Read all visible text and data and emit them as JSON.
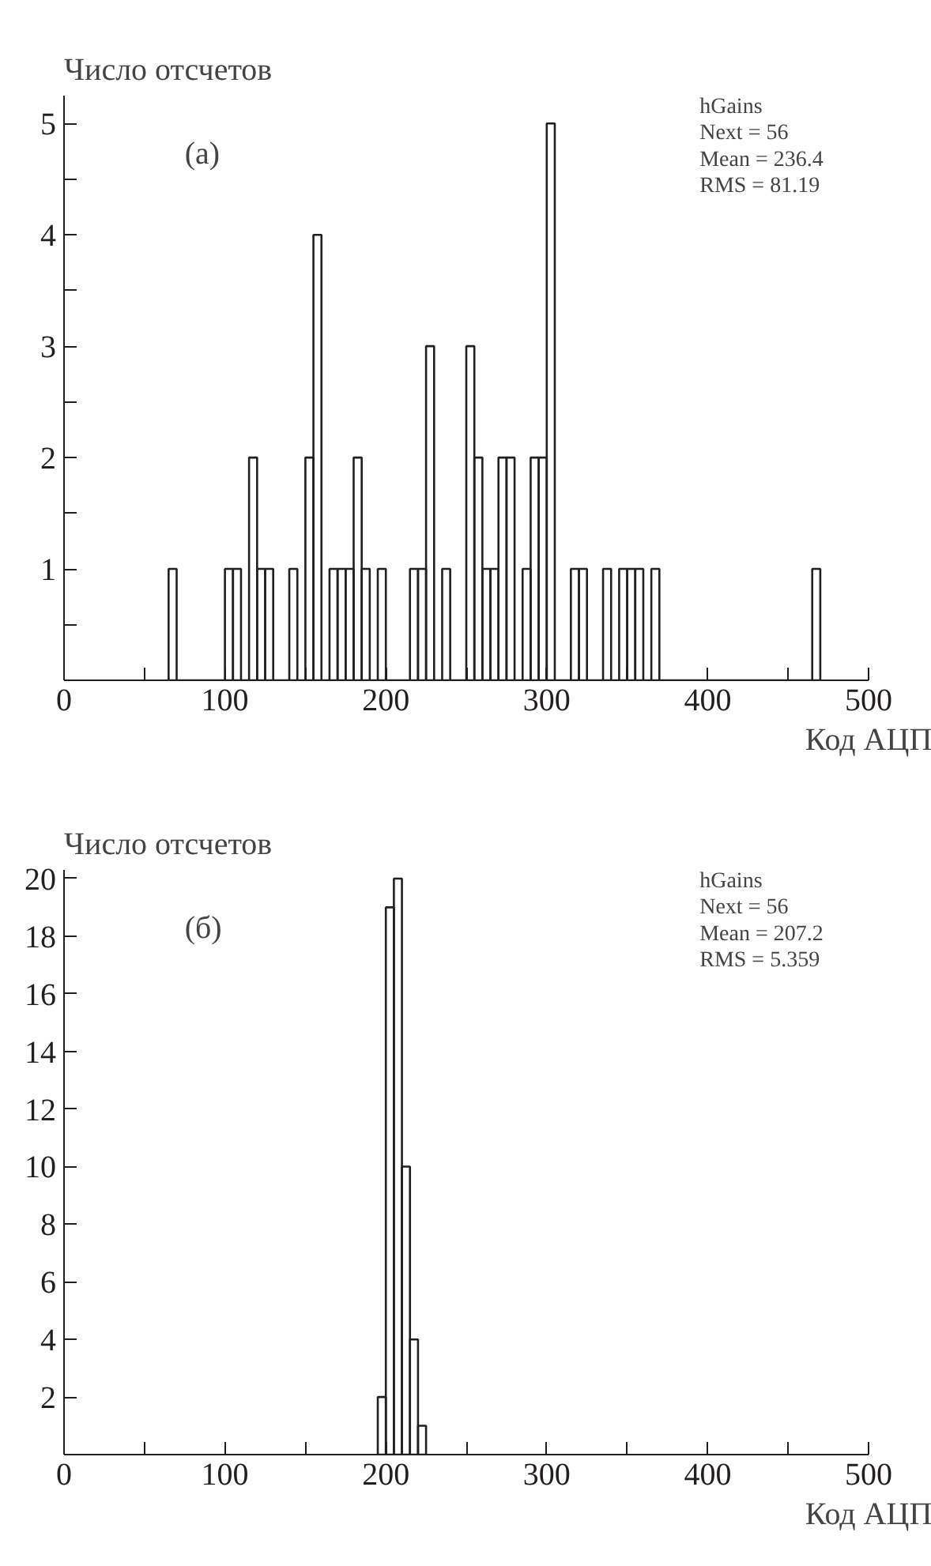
{
  "chart_data": [
    {
      "type": "histogram",
      "ylabel": "Число отсчетов",
      "xlabel": "Код АЦП",
      "annotations": [
        "(a)",
        "hGains",
        "Next = 56",
        "Mean = 236.4",
        "RMS = 81.19"
      ],
      "bins": [
        65,
        70,
        75,
        80,
        85,
        90,
        95,
        100,
        105,
        110,
        115,
        120,
        125,
        130,
        135,
        140,
        145,
        150,
        155,
        160,
        165,
        170,
        175,
        180,
        185,
        190,
        195,
        200,
        205,
        210,
        215,
        220,
        225,
        230,
        235,
        240,
        245,
        250,
        255,
        260,
        265,
        270,
        275,
        280,
        285,
        290,
        295,
        300,
        305,
        310,
        315,
        320,
        325,
        330,
        335,
        340,
        345,
        350,
        355,
        360,
        365,
        370,
        375,
        380,
        385,
        390,
        395,
        400,
        405,
        410,
        415,
        420,
        425,
        430,
        435,
        440,
        445,
        450,
        455,
        460,
        465,
        470
      ],
      "values": [
        1,
        0,
        0,
        0,
        0,
        0,
        0,
        1,
        1,
        0,
        2,
        1,
        1,
        0,
        0,
        1,
        0,
        2,
        4,
        0,
        1,
        1,
        1,
        2,
        1,
        0,
        1,
        0,
        0,
        0,
        1,
        1,
        3,
        0,
        1,
        0,
        0,
        3,
        2,
        1,
        1,
        2,
        2,
        0,
        1,
        2,
        2,
        5,
        0,
        0,
        1,
        1,
        0,
        0,
        1,
        0,
        1,
        1,
        1,
        0,
        1,
        0,
        0,
        0,
        0,
        0,
        0,
        0,
        0,
        0,
        0,
        0,
        0,
        0,
        0,
        0,
        0,
        0,
        0,
        0,
        1
      ],
      "color": "#231f20",
      "xlim": [
        0,
        500
      ],
      "ylim": [
        0,
        5.25
      ],
      "xticks": [
        0,
        {
          "value": 50,
          "label": null
        },
        100,
        {
          "value": 150,
          "label": null
        },
        200,
        {
          "value": 250,
          "label": null
        },
        300,
        {
          "value": 350,
          "label": null
        },
        400,
        {
          "value": 450,
          "label": null
        },
        500
      ],
      "yticks": [
        {
          "value": 0.5,
          "label": null
        },
        1,
        {
          "value": 1.5,
          "label": null
        },
        2,
        {
          "value": 2.5,
          "label": null
        },
        3,
        {
          "value": 3.5,
          "label": null
        },
        4,
        {
          "value": 4.5,
          "label": null
        },
        5
      ],
      "grid": false
    },
    {
      "type": "histogram",
      "ylabel": "Число отсчетов",
      "xlabel": "Код АЦП",
      "annotations": [
        "(б)",
        "hGains",
        "Next = 56",
        "Mean = 207.2",
        "RMS = 5.359"
      ],
      "bins": [
        195,
        200,
        205,
        210,
        215,
        220,
        225
      ],
      "values": [
        2,
        19,
        20,
        10,
        4,
        1
      ],
      "color": "#231f20",
      "xlim": [
        0,
        500
      ],
      "ylim": [
        0,
        20.3
      ],
      "xticks": [
        0,
        {
          "value": 50,
          "label": null
        },
        100,
        {
          "value": 150,
          "label": null
        },
        200,
        {
          "value": 250,
          "label": null
        },
        300,
        {
          "value": 350,
          "label": null
        },
        400,
        {
          "value": 450,
          "label": null
        },
        500
      ],
      "yticks": [
        2,
        4,
        6,
        8,
        10,
        12,
        14,
        16,
        18,
        20
      ],
      "grid": false
    }
  ]
}
